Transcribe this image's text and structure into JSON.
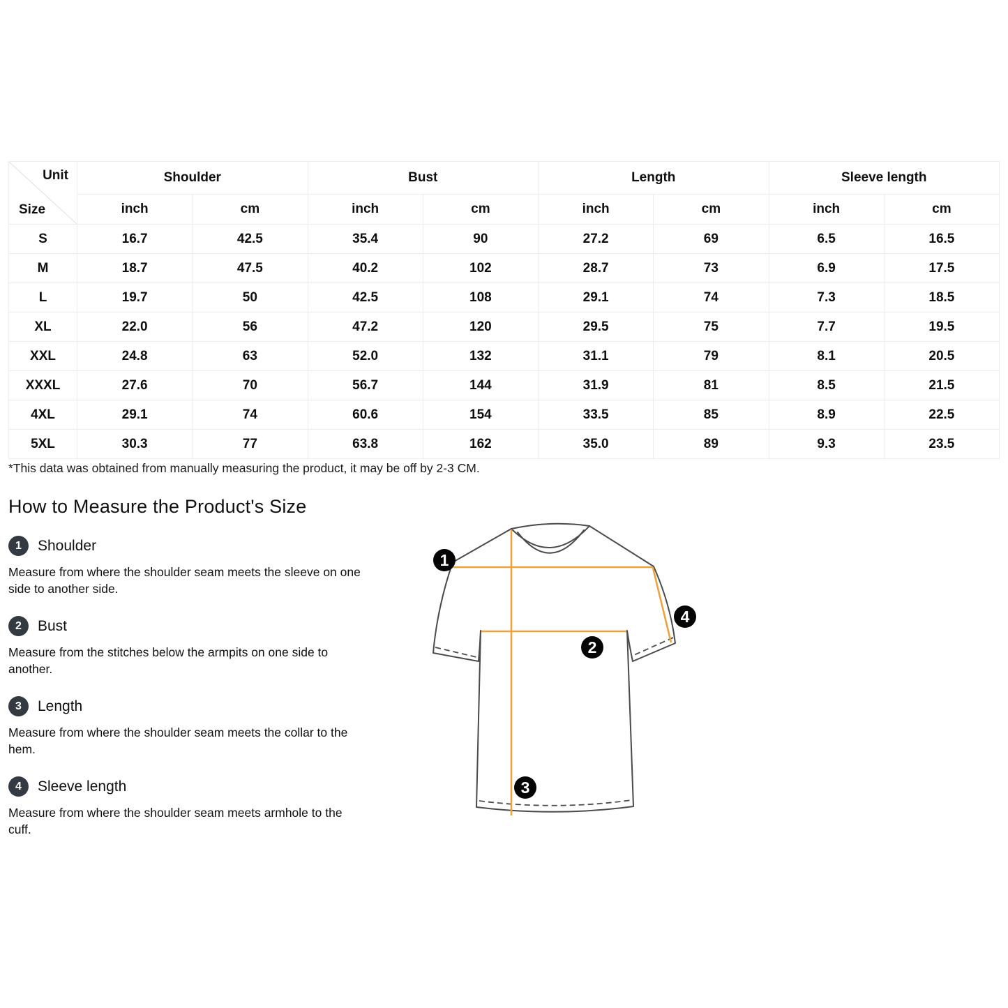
{
  "colors": {
    "accent": "#ECA33D",
    "list_badge": "#343A42",
    "diagram_badge": "#050505",
    "shirt_outline": "#4A4A4A",
    "table_border": "#ECECEC"
  },
  "size_chart": {
    "corner": {
      "top": "Unit",
      "bottom": "Size"
    },
    "groups": [
      "Shoulder",
      "Bust",
      "Length",
      "Sleeve length"
    ],
    "unit_headers": [
      "inch",
      "cm",
      "inch",
      "cm",
      "inch",
      "cm",
      "inch",
      "cm"
    ],
    "rows": [
      {
        "size": "S",
        "values": [
          "16.7",
          "42.5",
          "35.4",
          "90",
          "27.2",
          "69",
          "6.5",
          "16.5"
        ]
      },
      {
        "size": "M",
        "values": [
          "18.7",
          "47.5",
          "40.2",
          "102",
          "28.7",
          "73",
          "6.9",
          "17.5"
        ]
      },
      {
        "size": "L",
        "values": [
          "19.7",
          "50",
          "42.5",
          "108",
          "29.1",
          "74",
          "7.3",
          "18.5"
        ]
      },
      {
        "size": "XL",
        "values": [
          "22.0",
          "56",
          "47.2",
          "120",
          "29.5",
          "75",
          "7.7",
          "19.5"
        ]
      },
      {
        "size": "XXL",
        "values": [
          "24.8",
          "63",
          "52.0",
          "132",
          "31.1",
          "79",
          "8.1",
          "20.5"
        ]
      },
      {
        "size": "XXXL",
        "values": [
          "27.6",
          "70",
          "56.7",
          "144",
          "31.9",
          "81",
          "8.5",
          "21.5"
        ]
      },
      {
        "size": "4XL",
        "values": [
          "29.1",
          "74",
          "60.6",
          "154",
          "33.5",
          "85",
          "8.9",
          "22.5"
        ]
      },
      {
        "size": "5XL",
        "values": [
          "30.3",
          "77",
          "63.8",
          "162",
          "35.0",
          "89",
          "9.3",
          "23.5"
        ]
      }
    ],
    "footnote": "*This data was obtained from manually measuring the product, it may be off by 2-3 CM."
  },
  "how_to": {
    "title": "How to Measure the Product's Size",
    "items": [
      {
        "num": "1",
        "label": "Shoulder",
        "desc": "Measure from where the shoulder seam meets the sleeve on one side to another side."
      },
      {
        "num": "2",
        "label": "Bust",
        "desc": "Measure from the stitches below the armpits on one side to another."
      },
      {
        "num": "3",
        "label": "Length",
        "desc": "Measure from where the shoulder seam meets the collar to the hem."
      },
      {
        "num": "4",
        "label": "Sleeve length",
        "desc": "Measure from where the shoulder seam meets armhole to the cuff."
      }
    ]
  },
  "diagram": {
    "markers": [
      "1",
      "2",
      "3",
      "4"
    ]
  }
}
